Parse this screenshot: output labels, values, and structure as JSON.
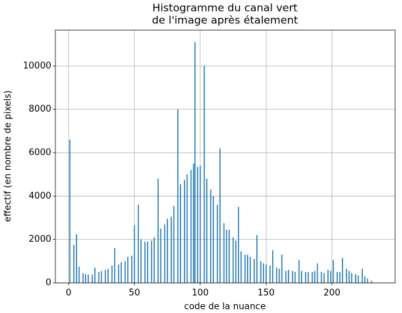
{
  "chart_data": {
    "type": "bar",
    "title": [
      "Histogramme du canal vert",
      "de l'image après étalement"
    ],
    "xlabel": "code de la nuance",
    "ylabel": "effectif (en nombre de pixels)",
    "color": "#1f77b4",
    "grid": true,
    "xlim": [
      -10,
      248
    ],
    "ylim": [
      0,
      11650
    ],
    "xticks": [
      0,
      50,
      100,
      150,
      200
    ],
    "yticks": [
      0,
      2000,
      4000,
      6000,
      8000,
      10000
    ],
    "x": [
      1,
      4,
      6,
      8,
      11,
      13,
      15,
      18,
      20,
      23,
      25,
      28,
      30,
      33,
      35,
      38,
      40,
      43,
      45,
      48,
      50,
      53,
      55,
      58,
      60,
      63,
      65,
      68,
      70,
      73,
      75,
      78,
      80,
      83,
      85,
      88,
      90,
      93,
      95,
      96,
      98,
      100,
      103,
      105,
      108,
      110,
      113,
      115,
      118,
      120,
      122,
      125,
      127,
      129,
      131,
      134,
      136,
      138,
      141,
      143,
      146,
      148,
      150,
      153,
      155,
      158,
      160,
      162,
      165,
      167,
      170,
      172,
      175,
      177,
      180,
      182,
      185,
      187,
      189,
      192,
      194,
      197,
      199,
      201,
      204,
      206,
      208,
      211,
      213,
      215,
      218,
      220,
      223,
      225,
      227,
      230
    ],
    "values": [
      6600,
      1750,
      2250,
      750,
      450,
      400,
      380,
      380,
      700,
      500,
      550,
      600,
      650,
      800,
      1600,
      850,
      950,
      1000,
      1200,
      1250,
      2650,
      3600,
      2000,
      1900,
      1900,
      1950,
      2100,
      4800,
      2500,
      2700,
      2950,
      3050,
      3550,
      8000,
      4550,
      4750,
      5000,
      5200,
      5500,
      11100,
      5350,
      5400,
      10000,
      4800,
      4300,
      4000,
      3600,
      6200,
      2750,
      2450,
      2450,
      2100,
      1950,
      3500,
      1450,
      1300,
      1300,
      1200,
      1100,
      2200,
      1000,
      900,
      850,
      800,
      1500,
      700,
      650,
      1300,
      550,
      600,
      550,
      500,
      1050,
      550,
      500,
      500,
      500,
      550,
      900,
      500,
      450,
      600,
      550,
      1050,
      500,
      500,
      1150,
      650,
      550,
      450,
      400,
      350,
      650,
      300,
      200,
      100
    ]
  }
}
